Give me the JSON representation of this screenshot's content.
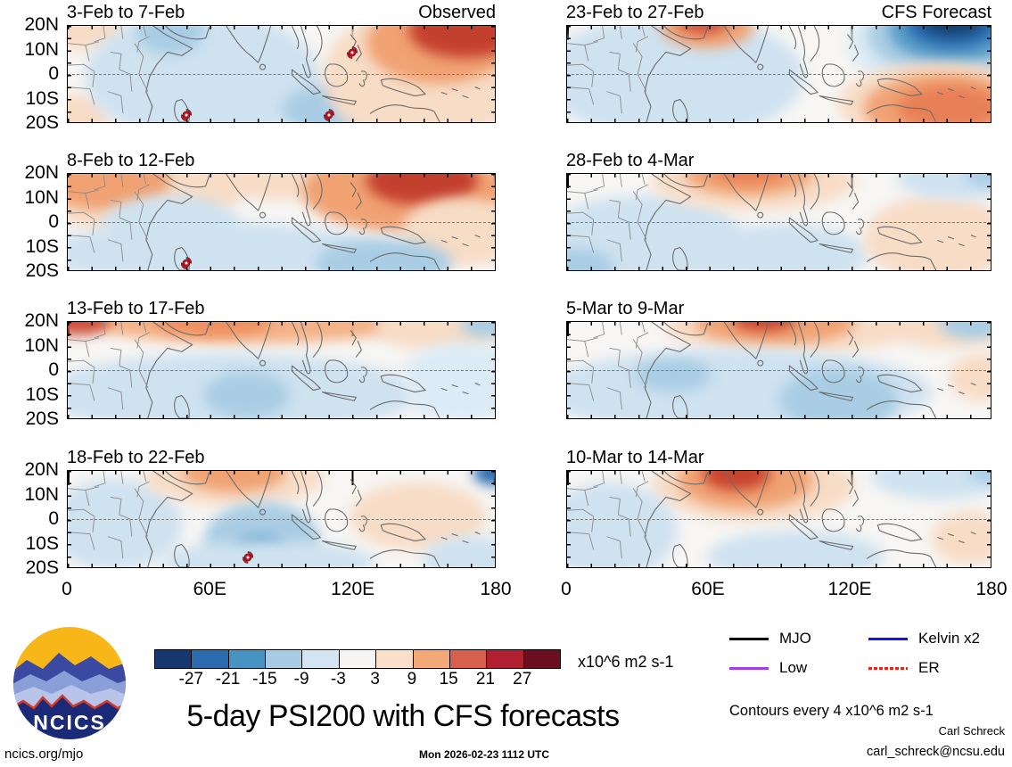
{
  "footer": {
    "title": "5-day PSI200 with CFS forecasts",
    "url": "ncics.org/mjo",
    "timestamp": "Mon 2026-02-23 1112 UTC",
    "logo_text": "NCICS"
  },
  "axis": {
    "y_ticks": [
      "20N",
      "10N",
      "0",
      "10S",
      "20S"
    ],
    "x_ticks": [
      "0",
      "60E",
      "120E",
      "180"
    ]
  },
  "panels": [
    {
      "title": "3-Feb to 7-Feb",
      "corner_label": "Observed",
      "cyclones": [
        {
          "lon": 120,
          "lat": 9
        },
        {
          "lon": 50,
          "lat": -17
        },
        {
          "lon": 110,
          "lat": -17
        }
      ]
    },
    {
      "title": "8-Feb to 12-Feb",
      "corner_label": "",
      "cyclones": [
        {
          "lon": 50,
          "lat": -17
        }
      ]
    },
    {
      "title": "13-Feb to 17-Feb",
      "corner_label": "",
      "cyclones": []
    },
    {
      "title": "18-Feb to 22-Feb",
      "corner_label": "",
      "cyclones": [
        {
          "lon": 76,
          "lat": -16
        }
      ]
    },
    {
      "title": "23-Feb to 27-Feb",
      "corner_label": "CFS Forecast",
      "cyclones": []
    },
    {
      "title": "28-Feb to 4-Mar",
      "corner_label": "",
      "cyclones": []
    },
    {
      "title": "5-Mar to 9-Mar",
      "corner_label": "",
      "cyclones": []
    },
    {
      "title": "10-Mar to 14-Mar",
      "corner_label": "",
      "cyclones": []
    }
  ],
  "colorbar": {
    "colors": [
      "#16386e",
      "#2b6cb0",
      "#4693c4",
      "#a6cbe3",
      "#d3e4f2",
      "#f6f5f3",
      "#fadfc9",
      "#f2a877",
      "#d6604d",
      "#b02030",
      "#6c0d20"
    ],
    "tick_labels": [
      "-27",
      "-21",
      "-15",
      "-9",
      "-3",
      "3",
      "9",
      "15",
      "21",
      "27"
    ],
    "units": "x10^6 m2 s-1"
  },
  "legend": {
    "items": [
      {
        "label": "MJO",
        "color": "#000000",
        "style": "solid"
      },
      {
        "label": "Kelvin x2",
        "color": "#1414e6",
        "style": "solid"
      },
      {
        "label": "Low",
        "color": "#a03df2",
        "style": "solid"
      },
      {
        "label": "ER",
        "color": "#f02010",
        "style": "dashed"
      }
    ]
  },
  "notes": {
    "contours": "Contours every 4 x10^6 m2 s-1",
    "author": "Carl Schreck",
    "email": "carl_schreck@ncsu.edu"
  },
  "chart_data": {
    "type": "heatmap",
    "title": "5-day PSI200 with CFS forecasts",
    "variable": "200-hPa streamfunction (PSI200) anomalies, 5-day means",
    "units": "x10^6 m2 s-1",
    "contour_interval": 4,
    "levels": [
      -27,
      -21,
      -15,
      -9,
      -3,
      3,
      9,
      15,
      21,
      27
    ],
    "palette": [
      "#16386e",
      "#2b6cb0",
      "#4693c4",
      "#a6cbe3",
      "#d3e4f2",
      "#f6f5f3",
      "#fadfc9",
      "#f2a877",
      "#d6604d",
      "#b02030",
      "#6c0d20"
    ],
    "lon_range_deg_east": [
      0,
      180
    ],
    "lat_range_deg_north": [
      -20,
      20
    ],
    "x_tick_labels": [
      "0",
      "60E",
      "120E",
      "180"
    ],
    "y_tick_labels": [
      "20N",
      "10N",
      "0",
      "10S",
      "20S"
    ],
    "grid": "equator dashed line only",
    "legend_position": "bottom-right",
    "wave_filter_legend": [
      "MJO",
      "Kelvin x2",
      "Low",
      "ER"
    ],
    "panels": [
      {
        "period": "3-Feb to 7-Feb",
        "kind": "Observed",
        "pattern": "negative (blue) anomalies 10E-100E, strong positive (red) anomalies 130E-180 north of equator",
        "tropical_cyclones": [
          {
            "lon": 120,
            "lat": 9
          },
          {
            "lon": 50,
            "lat": -17
          },
          {
            "lon": 110,
            "lat": -17
          }
        ]
      },
      {
        "period": "8-Feb to 12-Feb",
        "kind": "Observed",
        "pattern": "positive anomalies northern Africa/Arabia and strong positive 120E-180 north, weak negative south of equator",
        "tropical_cyclones": [
          {
            "lon": 50,
            "lat": -17
          }
        ]
      },
      {
        "period": "13-Feb to 17-Feb",
        "kind": "Observed",
        "pattern": "positive band along 15N-20N, weak negative anomalies across southern tropics",
        "tropical_cyclones": []
      },
      {
        "period": "18-Feb to 22-Feb",
        "kind": "Observed",
        "pattern": "weak field; negative center near 75E 15S with TC, weak positive 60E-70E north and 120E-150E",
        "tropical_cyclones": [
          {
            "lon": 76,
            "lat": -16
          }
        ]
      },
      {
        "period": "23-Feb to 27-Feb",
        "kind": "CFS Forecast",
        "pattern": "strong negative center near 160E 20N+, positive center near 60E 20N and 140E-180 south of equator",
        "tropical_cyclones": []
      },
      {
        "period": "28-Feb to 4-Mar",
        "kind": "CFS Forecast",
        "pattern": "positive anomalies over India region, weak positive southwest Pacific, weak negative elsewhere",
        "tropical_cyclones": []
      },
      {
        "period": "5-Mar to 9-Mar",
        "kind": "CFS Forecast",
        "pattern": "positive band 60E-130E along 15N-20N, weak negative southern tropics",
        "tropical_cyclones": []
      },
      {
        "period": "10-Mar to 14-Mar",
        "kind": "CFS Forecast",
        "pattern": "positive center near 60E-80E 15N-20N, weak negative elsewhere",
        "tropical_cyclones": []
      }
    ]
  }
}
